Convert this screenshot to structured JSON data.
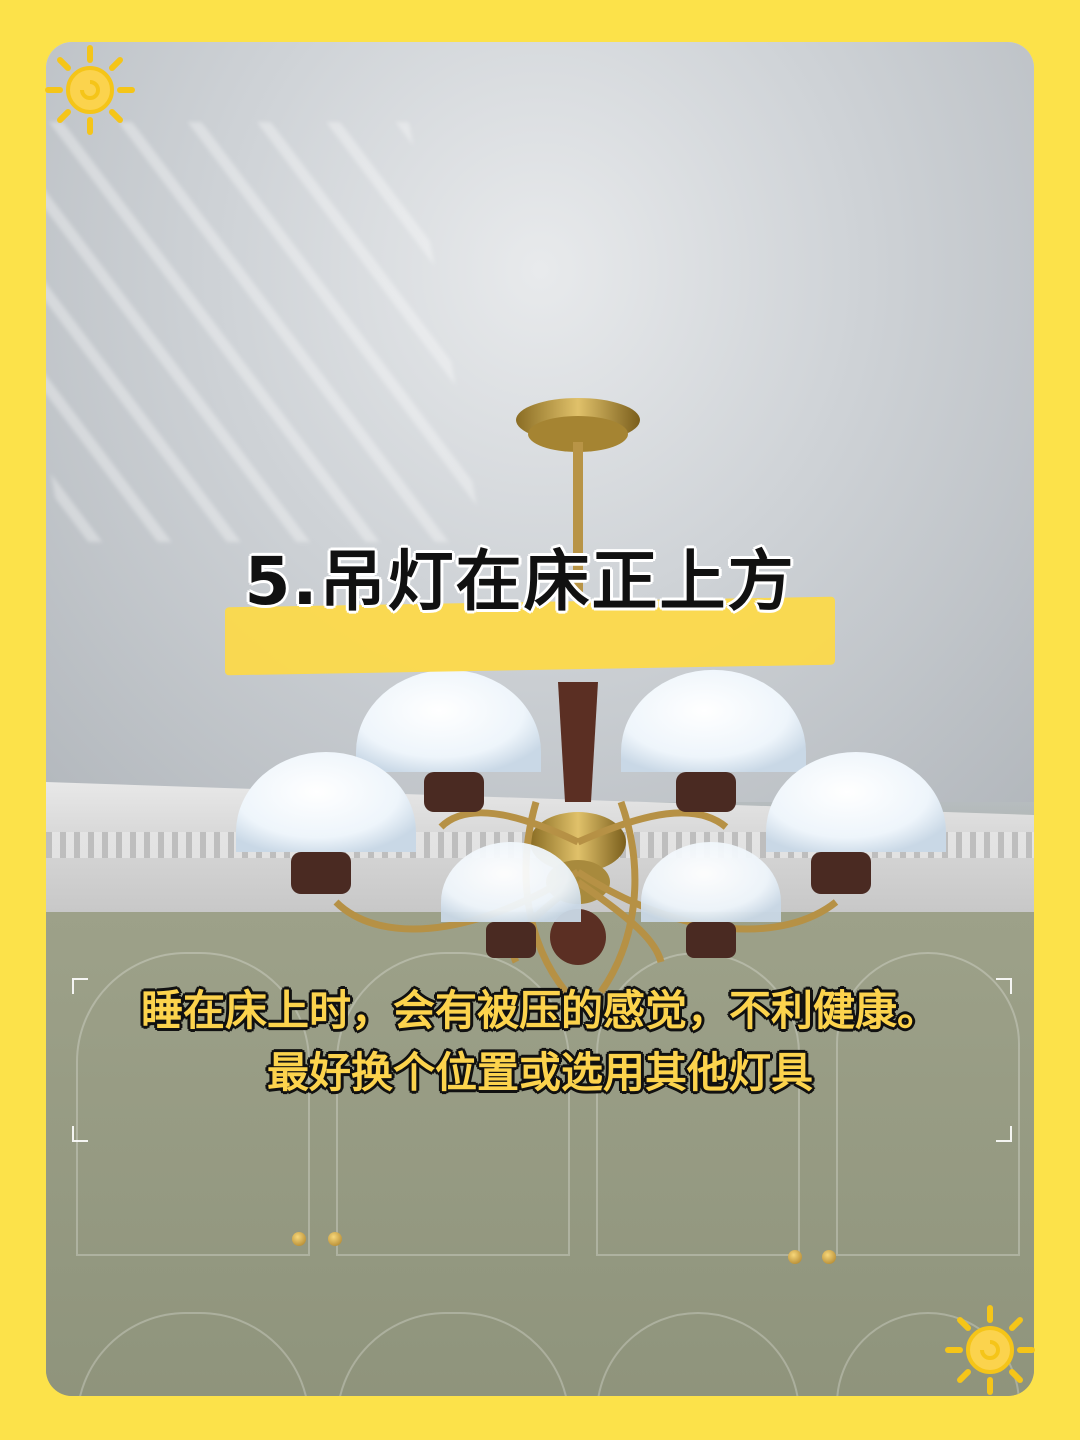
{
  "card": {
    "title": "5.吊灯在床正上方",
    "description": {
      "line1": "睡在床上时，会有被压的感觉，不利健康。",
      "line2": "最好换个位置或选用其他灯具"
    }
  },
  "colors": {
    "frame": "#FCE24A",
    "highlight_bar": "#FCD94A",
    "caption_text": "#FCD34D",
    "caption_outline": "#111111"
  },
  "icons": {
    "top_left": "sun-icon",
    "bottom_right": "sun-icon"
  }
}
